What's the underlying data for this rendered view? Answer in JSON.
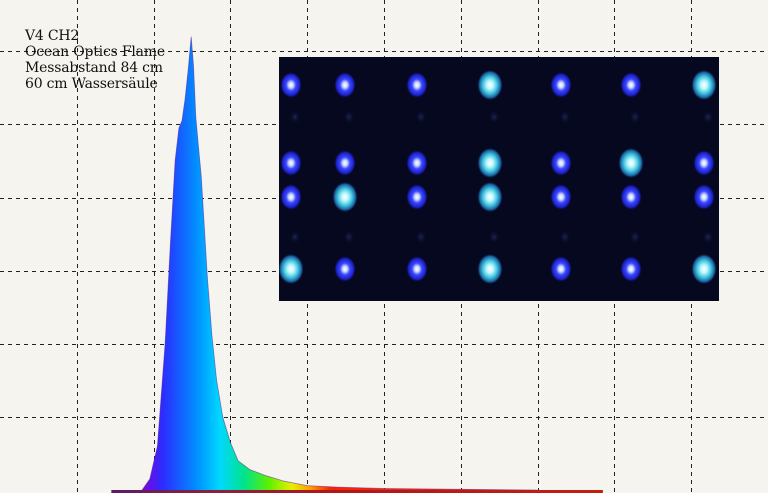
{
  "annotation": {
    "line1": "V4 CH2",
    "line2": "Ocean Optics Flame",
    "line3": "Messabstand 84 cm",
    "line4": "60 cm Wassersäule"
  },
  "colors": {
    "background": "#f6f4ee",
    "grid": "#222222",
    "photo_background": "#05081e",
    "led_blue": "#2a3cff",
    "led_cyan": "#4fd9e8",
    "led_core": "#ffffff"
  },
  "photo": {
    "description_icon": "led-array-photo",
    "leds": [
      {
        "row": 1,
        "col": 1,
        "type": "blue"
      },
      {
        "row": 1,
        "col": 2,
        "type": "blue"
      },
      {
        "row": 1,
        "col": 3,
        "type": "blue"
      },
      {
        "row": 1,
        "col": 4,
        "type": "cyan"
      },
      {
        "row": 1,
        "col": 5,
        "type": "blue"
      },
      {
        "row": 1,
        "col": 6,
        "type": "blue"
      },
      {
        "row": 1,
        "col": 7,
        "type": "cyan"
      },
      {
        "row": 2,
        "col": 1,
        "type": "blue"
      },
      {
        "row": 2,
        "col": 2,
        "type": "blue"
      },
      {
        "row": 2,
        "col": 3,
        "type": "blue"
      },
      {
        "row": 2,
        "col": 4,
        "type": "cyan"
      },
      {
        "row": 2,
        "col": 5,
        "type": "blue"
      },
      {
        "row": 2,
        "col": 6,
        "type": "cyan"
      },
      {
        "row": 2,
        "col": 7,
        "type": "blue"
      },
      {
        "row": 3,
        "col": 1,
        "type": "blue"
      },
      {
        "row": 3,
        "col": 2,
        "type": "cyan"
      },
      {
        "row": 3,
        "col": 3,
        "type": "blue"
      },
      {
        "row": 3,
        "col": 4,
        "type": "cyan"
      },
      {
        "row": 3,
        "col": 5,
        "type": "blue"
      },
      {
        "row": 3,
        "col": 6,
        "type": "blue"
      },
      {
        "row": 3,
        "col": 7,
        "type": "blue"
      },
      {
        "row": 4,
        "col": 1,
        "type": "cyan"
      },
      {
        "row": 4,
        "col": 2,
        "type": "blue"
      },
      {
        "row": 4,
        "col": 3,
        "type": "blue"
      },
      {
        "row": 4,
        "col": 4,
        "type": "cyan"
      },
      {
        "row": 4,
        "col": 5,
        "type": "blue"
      },
      {
        "row": 4,
        "col": 6,
        "type": "blue"
      },
      {
        "row": 4,
        "col": 7,
        "type": "cyan"
      }
    ]
  },
  "chart_data": {
    "type": "area",
    "title": "",
    "xlabel": "",
    "ylabel": "",
    "grid": true,
    "x_unit_note": "relative spectral position (no tick labels printed)",
    "xlim": [
      0,
      10
    ],
    "ylim": [
      0,
      6.4
    ],
    "grid_x": [
      1,
      2,
      3,
      4,
      5,
      6,
      7,
      8,
      9
    ],
    "grid_y": [
      1,
      2,
      3,
      4,
      5,
      6
    ],
    "x": [
      1.85,
      1.95,
      2.05,
      2.15,
      2.22,
      2.28,
      2.33,
      2.37,
      2.41,
      2.45,
      2.49,
      2.52,
      2.55,
      2.58,
      2.62,
      2.66,
      2.7,
      2.76,
      2.82,
      2.9,
      3.0,
      3.1,
      3.25,
      3.45,
      3.7,
      4.0,
      4.4,
      5.0,
      6.0,
      7.0
    ],
    "y": [
      0.0,
      0.15,
      0.6,
      2.0,
      3.4,
      4.5,
      4.95,
      5.05,
      5.35,
      5.75,
      6.2,
      5.8,
      5.1,
      4.75,
      4.3,
      3.6,
      2.9,
      2.1,
      1.5,
      1.0,
      0.65,
      0.4,
      0.28,
      0.2,
      0.12,
      0.06,
      0.04,
      0.02,
      0.01,
      0.0
    ],
    "legend": []
  }
}
